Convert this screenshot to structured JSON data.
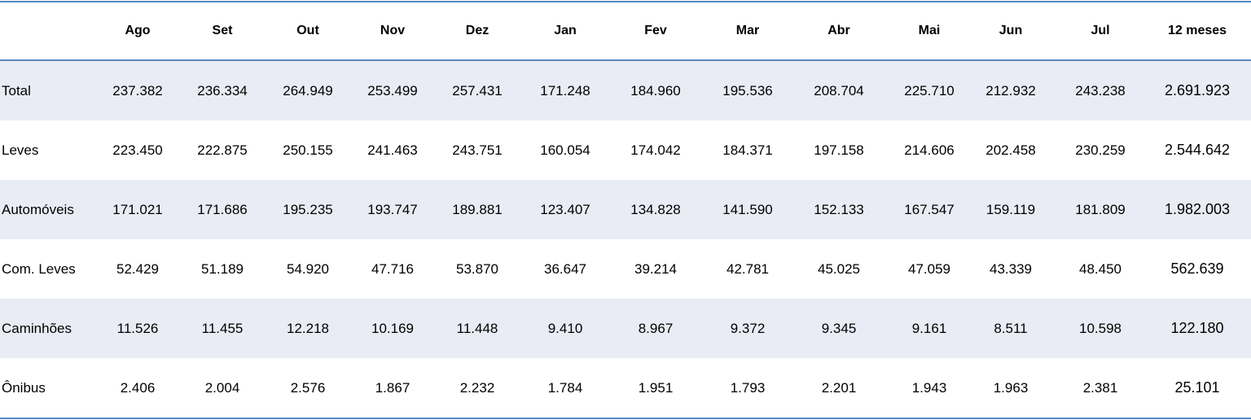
{
  "table": {
    "columns": [
      "Ago",
      "Set",
      "Out",
      "Nov",
      "Dez",
      "Jan",
      "Fev",
      "Mar",
      "Abr",
      "Mai",
      "Jun",
      "Jul",
      "12 meses"
    ],
    "rows": [
      {
        "label": "Total",
        "cells": [
          "237.382",
          "236.334",
          "264.949",
          "253.499",
          "257.431",
          "171.248",
          "184.960",
          "195.536",
          "208.704",
          "225.710",
          "212.932",
          "243.238",
          "2.691.923"
        ]
      },
      {
        "label": "Leves",
        "cells": [
          "223.450",
          "222.875",
          "250.155",
          "241.463",
          "243.751",
          "160.054",
          "174.042",
          "184.371",
          "197.158",
          "214.606",
          "202.458",
          "230.259",
          "2.544.642"
        ]
      },
      {
        "label": "Automóveis",
        "cells": [
          "171.021",
          "171.686",
          "195.235",
          "193.747",
          "189.881",
          "123.407",
          "134.828",
          "141.590",
          "152.133",
          "167.547",
          "159.119",
          "181.809",
          "1.982.003"
        ]
      },
      {
        "label": "Com. Leves",
        "cells": [
          "52.429",
          "51.189",
          "54.920",
          "47.716",
          "53.870",
          "36.647",
          "39.214",
          "42.781",
          "45.025",
          "47.059",
          "43.339",
          "48.450",
          "562.639"
        ]
      },
      {
        "label": "Caminhões",
        "cells": [
          "11.526",
          "11.455",
          "12.218",
          "10.169",
          "11.448",
          "9.410",
          "8.967",
          "9.372",
          "9.345",
          "9.161",
          "8.511",
          "10.598",
          "122.180"
        ]
      },
      {
        "label": "Ônibus",
        "cells": [
          "2.406",
          "2.004",
          "2.576",
          "1.867",
          "2.232",
          "1.784",
          "1.951",
          "1.793",
          "2.201",
          "1.943",
          "1.963",
          "2.381",
          "25.101"
        ]
      }
    ]
  }
}
